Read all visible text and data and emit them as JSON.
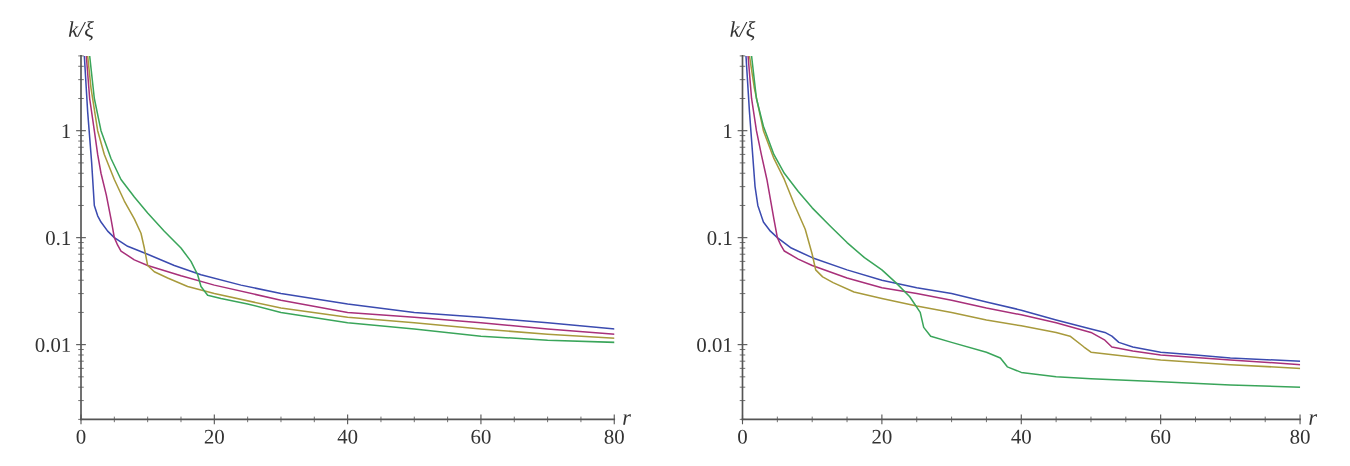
{
  "chart_data": [
    {
      "type": "line",
      "xlabel": "r",
      "ylabel": "k/ξ",
      "log": "y",
      "xlim": [
        0,
        80
      ],
      "xticks": [
        0,
        20,
        40,
        60,
        80
      ],
      "ylim": [
        0.002,
        5
      ],
      "yticks": [
        0.01,
        0.1,
        1
      ],
      "series": [
        {
          "color": "#3b4bb0",
          "x": [
            0.5,
            1,
            1.6,
            2,
            2.5,
            3,
            4,
            5,
            7,
            10,
            14,
            18,
            24,
            30,
            40,
            50,
            60,
            70,
            80
          ],
          "values": [
            5,
            1.5,
            0.5,
            0.2,
            0.16,
            0.14,
            0.115,
            0.1,
            0.083,
            0.07,
            0.055,
            0.045,
            0.036,
            0.03,
            0.024,
            0.02,
            0.018,
            0.016,
            0.014
          ]
        },
        {
          "color": "#a8307a",
          "x": [
            0.8,
            1.3,
            2,
            2.5,
            3,
            3.8,
            4.5,
            5,
            5.5,
            6,
            8,
            10,
            15,
            20,
            30,
            40,
            50,
            60,
            70,
            80
          ],
          "values": [
            5,
            2,
            1,
            0.6,
            0.4,
            0.25,
            0.15,
            0.1,
            0.085,
            0.075,
            0.062,
            0.055,
            0.044,
            0.036,
            0.026,
            0.02,
            0.018,
            0.016,
            0.014,
            0.0125
          ]
        },
        {
          "color": "#a89a3c",
          "x": [
            1,
            1.5,
            2.5,
            3.5,
            5,
            6.5,
            8,
            9,
            9.5,
            10,
            11,
            13,
            16,
            20,
            30,
            40,
            50,
            60,
            70,
            80
          ],
          "values": [
            5,
            2.5,
            1,
            0.6,
            0.35,
            0.22,
            0.15,
            0.11,
            0.08,
            0.055,
            0.048,
            0.042,
            0.035,
            0.03,
            0.022,
            0.018,
            0.016,
            0.014,
            0.0125,
            0.0115
          ]
        },
        {
          "color": "#3aa55a",
          "x": [
            1.3,
            2,
            3,
            4.5,
            6,
            8,
            10,
            12.5,
            15,
            16.5,
            17.5,
            18,
            19,
            21,
            25,
            30,
            40,
            50,
            60,
            70,
            80
          ],
          "values": [
            5,
            2,
            1,
            0.55,
            0.35,
            0.24,
            0.17,
            0.115,
            0.08,
            0.06,
            0.045,
            0.035,
            0.029,
            0.027,
            0.024,
            0.02,
            0.016,
            0.014,
            0.012,
            0.011,
            0.0105
          ]
        }
      ]
    },
    {
      "type": "line",
      "xlabel": "r",
      "ylabel": "k/ξ",
      "log": "y",
      "xlim": [
        0,
        80
      ],
      "xticks": [
        0,
        20,
        40,
        60,
        80
      ],
      "ylim": [
        0.002,
        5
      ],
      "yticks": [
        0.01,
        0.1,
        1
      ],
      "series": [
        {
          "color": "#3b4bb0",
          "x": [
            0.5,
            1,
            1.8,
            2.2,
            3,
            4,
            5,
            7,
            10,
            15,
            20,
            25,
            30,
            35,
            40,
            45,
            50,
            52,
            53,
            54,
            56,
            60,
            65,
            70,
            80
          ],
          "values": [
            5,
            1.5,
            0.3,
            0.2,
            0.14,
            0.115,
            0.1,
            0.08,
            0.065,
            0.05,
            0.04,
            0.034,
            0.03,
            0.025,
            0.021,
            0.017,
            0.014,
            0.013,
            0.012,
            0.0105,
            0.0095,
            0.0085,
            0.008,
            0.0075,
            0.007
          ]
        },
        {
          "color": "#a8307a",
          "x": [
            0.8,
            1.3,
            2,
            2.7,
            3.5,
            4.5,
            5,
            5.5,
            6,
            8,
            10,
            15,
            20,
            25,
            30,
            35,
            40,
            45,
            50,
            52,
            53,
            56,
            60,
            70,
            80
          ],
          "values": [
            5,
            2,
            1,
            0.6,
            0.35,
            0.15,
            0.1,
            0.085,
            0.075,
            0.063,
            0.055,
            0.042,
            0.034,
            0.03,
            0.026,
            0.022,
            0.019,
            0.016,
            0.013,
            0.011,
            0.0095,
            0.0087,
            0.008,
            0.0072,
            0.0065
          ]
        },
        {
          "color": "#a89a3c",
          "x": [
            1,
            1.7,
            3,
            4.5,
            6,
            7.5,
            9,
            10,
            10.5,
            11.5,
            13,
            16,
            20,
            25,
            30,
            35,
            40,
            45,
            47,
            49,
            50,
            55,
            60,
            70,
            80
          ],
          "values": [
            5,
            2.5,
            1,
            0.55,
            0.35,
            0.2,
            0.12,
            0.07,
            0.05,
            0.043,
            0.038,
            0.031,
            0.027,
            0.023,
            0.02,
            0.017,
            0.015,
            0.013,
            0.012,
            0.0095,
            0.0085,
            0.0078,
            0.0072,
            0.0065,
            0.006
          ]
        },
        {
          "color": "#3aa55a",
          "x": [
            1.3,
            2,
            3,
            4.5,
            6,
            8,
            10,
            12.5,
            15,
            17.5,
            20,
            22,
            24,
            25.5,
            26,
            27,
            30,
            35,
            37,
            38,
            40,
            45,
            50,
            60,
            70,
            80
          ],
          "values": [
            5,
            2,
            1.1,
            0.6,
            0.4,
            0.27,
            0.19,
            0.13,
            0.09,
            0.065,
            0.05,
            0.038,
            0.028,
            0.02,
            0.0145,
            0.012,
            0.0105,
            0.0085,
            0.0075,
            0.0062,
            0.0055,
            0.005,
            0.0048,
            0.0045,
            0.0042,
            0.004
          ]
        }
      ]
    }
  ]
}
